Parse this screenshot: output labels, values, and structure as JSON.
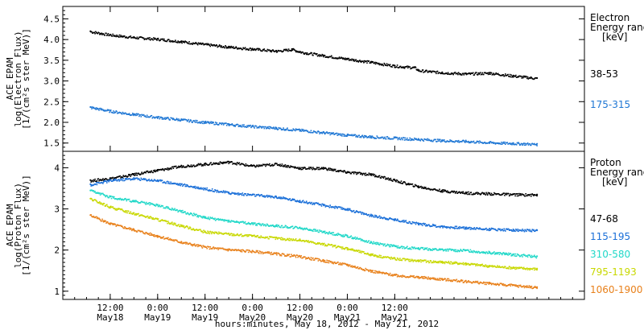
{
  "chart_data": [
    {
      "type": "scatter",
      "panel": "electron",
      "ylabel": [
        "ACE EPAM",
        "log(Electron Flux)",
        "[1/(cm²s ster MeV)]"
      ],
      "ylim": [
        1.3,
        4.8
      ],
      "yticks": [
        "1.5",
        "2.0",
        "2.5",
        "3.0",
        "3.5",
        "4.0",
        "4.5"
      ],
      "legend_title": [
        "Electron",
        "Energy ranges",
        "[keV]"
      ],
      "series": [
        {
          "name": "38-53",
          "color": "#000000",
          "x": [
            7,
            12,
            18,
            24,
            30,
            36,
            42,
            48,
            54,
            58,
            60,
            66,
            72,
            78,
            84,
            89,
            90,
            96,
            102,
            108,
            114,
            120
          ],
          "y": [
            4.2,
            4.12,
            4.06,
            4.02,
            3.96,
            3.89,
            3.83,
            3.78,
            3.73,
            3.77,
            3.71,
            3.62,
            3.54,
            3.46,
            3.37,
            3.33,
            3.26,
            3.21,
            3.18,
            3.2,
            3.13,
            3.07
          ]
        },
        {
          "name": "175-315",
          "color": "#1f77d4",
          "x": [
            7,
            12,
            18,
            24,
            30,
            36,
            42,
            48,
            54,
            60,
            66,
            72,
            78,
            84,
            90,
            96,
            102,
            108,
            114,
            120
          ],
          "y": [
            2.37,
            2.28,
            2.2,
            2.13,
            2.07,
            2.01,
            1.96,
            1.91,
            1.87,
            1.82,
            1.76,
            1.7,
            1.66,
            1.63,
            1.6,
            1.57,
            1.55,
            1.52,
            1.5,
            1.48
          ]
        }
      ]
    },
    {
      "type": "scatter",
      "panel": "proton",
      "ylabel": [
        "ACE EPAM",
        "log(Proton Flux)",
        "[1/(cm²s ster MeV)]"
      ],
      "ylim": [
        0.8,
        4.4
      ],
      "yticks": [
        "1",
        "2",
        "3",
        "4"
      ],
      "legend_title": [
        "Proton",
        "Energy ranges",
        "[keV]"
      ],
      "series": [
        {
          "name": "47-68",
          "color": "#000000",
          "x": [
            7,
            12,
            18,
            24,
            30,
            36,
            42,
            48,
            54,
            60,
            66,
            72,
            78,
            84,
            90,
            96,
            102,
            108,
            114,
            120
          ],
          "y": [
            3.7,
            3.75,
            3.85,
            3.95,
            4.05,
            4.1,
            4.15,
            4.05,
            4.1,
            4.0,
            4.0,
            3.9,
            3.85,
            3.7,
            3.55,
            3.45,
            3.4,
            3.38,
            3.36,
            3.35
          ]
        },
        {
          "name": "115-195",
          "color": "#1a6fd8",
          "x": [
            7,
            12,
            18,
            24,
            30,
            36,
            42,
            48,
            54,
            60,
            66,
            72,
            78,
            84,
            90,
            96,
            102,
            108,
            114,
            120
          ],
          "y": [
            3.6,
            3.7,
            3.75,
            3.7,
            3.6,
            3.5,
            3.4,
            3.35,
            3.3,
            3.2,
            3.1,
            3.0,
            2.85,
            2.75,
            2.65,
            2.58,
            2.55,
            2.52,
            2.5,
            2.48
          ]
        },
        {
          "name": "310-580",
          "color": "#20d8c8",
          "x": [
            7,
            12,
            18,
            24,
            30,
            36,
            42,
            48,
            54,
            60,
            66,
            72,
            78,
            84,
            90,
            96,
            102,
            108,
            114,
            120
          ],
          "y": [
            3.45,
            3.3,
            3.2,
            3.1,
            2.95,
            2.8,
            2.72,
            2.65,
            2.6,
            2.55,
            2.45,
            2.35,
            2.2,
            2.1,
            2.05,
            2.02,
            2.0,
            1.95,
            1.9,
            1.85
          ]
        },
        {
          "name": "795-1193",
          "color": "#c8d800",
          "x": [
            7,
            12,
            18,
            24,
            30,
            36,
            42,
            48,
            54,
            60,
            66,
            72,
            78,
            84,
            90,
            96,
            102,
            108,
            114,
            120
          ],
          "y": [
            3.25,
            3.05,
            2.9,
            2.75,
            2.6,
            2.45,
            2.4,
            2.35,
            2.3,
            2.25,
            2.15,
            2.05,
            1.9,
            1.8,
            1.75,
            1.72,
            1.68,
            1.62,
            1.58,
            1.55
          ]
        },
        {
          "name": "1060-1900",
          "color": "#e8801a",
          "x": [
            7,
            12,
            18,
            24,
            30,
            36,
            42,
            48,
            54,
            60,
            66,
            72,
            78,
            84,
            90,
            96,
            102,
            108,
            114,
            120
          ],
          "y": [
            2.85,
            2.65,
            2.5,
            2.35,
            2.2,
            2.08,
            2.02,
            1.98,
            1.92,
            1.85,
            1.75,
            1.65,
            1.5,
            1.4,
            1.35,
            1.3,
            1.25,
            1.2,
            1.15,
            1.1
          ]
        }
      ]
    }
  ],
  "x_axis": {
    "xlim": [
      0,
      132
    ],
    "ticks": [
      {
        "value": 12,
        "line1": "12:00",
        "line2": "May18"
      },
      {
        "value": 24,
        "line1": "0:00",
        "line2": "May19"
      },
      {
        "value": 36,
        "line1": "12:00",
        "line2": "May19"
      },
      {
        "value": 48,
        "line1": "0:00",
        "line2": "May20"
      },
      {
        "value": 60,
        "line1": "12:00",
        "line2": "May20"
      },
      {
        "value": 72,
        "line1": "0:00",
        "line2": "May21"
      },
      {
        "value": 84,
        "line1": "12:00",
        "line2": "May21"
      }
    ],
    "label": "hours:minutes, May 18, 2012 - May 21, 2012"
  }
}
